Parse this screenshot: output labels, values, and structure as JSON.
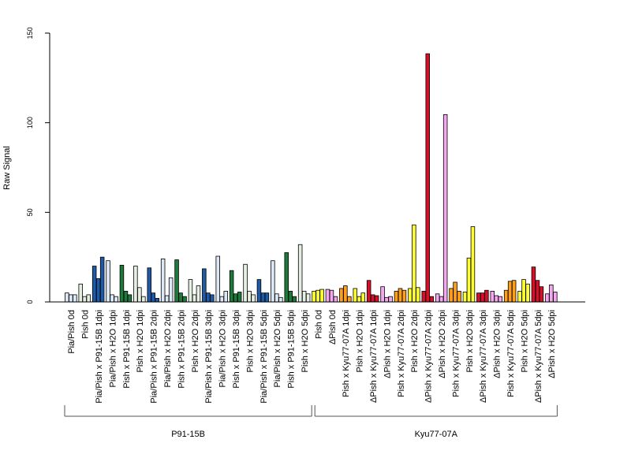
{
  "chart_data": {
    "type": "bar",
    "ylabel": "Raw Signal",
    "xlabel": "",
    "ylim": [
      0,
      150
    ],
    "yticks": [
      0,
      50,
      100,
      150
    ],
    "categories": [
      "Pia/Pish 0d",
      "Pish 0d",
      "Pia/Pish x P91-15B 1dpi",
      "Pia/Pish x H2O 1dpi",
      "Pish x P91-15B 1dpi",
      "Pish x H2O 1dpi",
      "Pia/Pish x P91-15B 2dpi",
      "Pia/Pish x H2O 2dpi",
      "Pish x P91-15B 2dpi",
      "Pish x H2O 2dpi",
      "Pia/Pish x P91-15B 3dpi",
      "Pia/Pish x H2O 3dpi",
      "Pish x P91-15B 3dpi",
      "Pish x H2O 3dpi",
      "Pia/Pish x P91-15B 5dpi",
      "Pia/Pish x H2O 5dpi",
      "Pish x P91-15B 5dpi",
      "Pish x H2O 5dpi",
      "Pish 0d",
      "ΔPish 0d",
      "Pish x Kyu77-07A 1dpi",
      "Pish x H2O 1dpi",
      "ΔPish x Kyu77-07A 1dpi",
      "ΔPish x H2O 1dpi",
      "Pish x Kyu77-07A 2dpi",
      "Pish x H2O 2dpi",
      "ΔPish x Kyu77-07A 2dpi",
      "ΔPish x H2O 2dpi",
      "Pish x Kyu77-07A 3dpi",
      "Pish x H2O 3dpi",
      "ΔPish x Kyu77-07A 3dpi",
      "ΔPish x H2O 3dpi",
      "Pish x Kyu77-07A 5dpi",
      "Pish x H2O 5dpi",
      "ΔPish x Kyu77-07A 5dpi",
      "ΔPish x H2O 5dpi"
    ],
    "colors": [
      "#dbe9f7",
      "#e5f0e3",
      "#1f5aa6",
      "#dbe9f7",
      "#1e7a3a",
      "#e5f0e3",
      "#1f5aa6",
      "#dbe9f7",
      "#1e7a3a",
      "#e5f0e3",
      "#1f5aa6",
      "#dbe9f7",
      "#1e7a3a",
      "#e5f0e3",
      "#1f5aa6",
      "#dbe9f7",
      "#1e7a3a",
      "#e5f0e3",
      "#ffff33",
      "#f4a8f0",
      "#ff9e1a",
      "#ffff33",
      "#d7102a",
      "#f4a8f0",
      "#ff9e1a",
      "#ffff33",
      "#d7102a",
      "#f4a8f0",
      "#ff9e1a",
      "#ffff33",
      "#d7102a",
      "#f4a8f0",
      "#ff9e1a",
      "#ffff33",
      "#d7102a",
      "#f4a8f0"
    ],
    "values": [
      [
        5,
        4,
        4
      ],
      [
        10,
        3,
        4
      ],
      [
        20,
        13,
        25
      ],
      [
        23,
        4,
        3
      ],
      [
        20.5,
        6,
        4
      ],
      [
        20,
        8,
        3
      ],
      [
        19,
        5,
        2
      ],
      [
        24,
        3.5,
        13.5
      ],
      [
        23.5,
        5,
        3
      ],
      [
        12.5,
        4,
        9
      ],
      [
        18.5,
        5,
        4
      ],
      [
        25.5,
        3,
        6
      ],
      [
        17.5,
        4.5,
        5.5
      ],
      [
        21,
        6,
        4
      ],
      [
        12.5,
        5,
        5
      ],
      [
        23,
        4.5,
        2.5
      ],
      [
        27.5,
        6,
        3
      ],
      [
        32,
        6,
        4.5
      ],
      [
        6,
        6.5,
        7
      ],
      [
        7,
        6.5,
        3
      ],
      [
        7.5,
        9,
        3
      ],
      [
        7.5,
        3,
        5
      ],
      [
        12,
        4,
        3.5
      ],
      [
        8.5,
        2.5,
        3
      ],
      [
        6,
        7.5,
        6.5
      ],
      [
        7.5,
        43,
        8
      ],
      [
        6,
        138.5,
        3
      ],
      [
        4.5,
        3,
        104.5
      ],
      [
        7.5,
        11,
        6
      ],
      [
        5.5,
        24.5,
        42
      ],
      [
        5,
        5,
        6.5
      ],
      [
        6,
        3.5,
        3
      ],
      [
        6.5,
        11.5,
        12
      ],
      [
        6,
        12.5,
        10
      ],
      [
        19.5,
        12,
        8.5
      ],
      [
        4.5,
        9.5,
        5.5
      ]
    ],
    "groups": [
      {
        "label": "P91-15B",
        "from": 0,
        "to": 17
      },
      {
        "label": "Kyu77-07A",
        "from": 18,
        "to": 35
      }
    ]
  }
}
